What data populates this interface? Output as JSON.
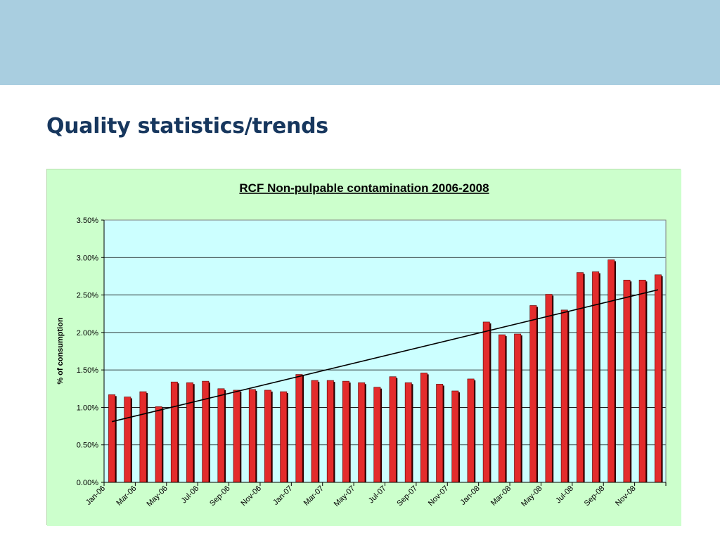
{
  "slide": {
    "title": "Quality statistics/trends",
    "header_color": "#A9CEE0",
    "title_color": "#17375E"
  },
  "colors": {
    "chart_background": "#CCFFCC",
    "plot_background": "#CCFFFF",
    "bar_fill": "#E32C2C",
    "bar_shadow": "#2B0000",
    "trendline": "#000000",
    "gridline": "#000000"
  },
  "chart_data": {
    "type": "bar",
    "title": "RCF Non-pulpable contamination 2006-2008",
    "xlabel": "",
    "ylabel": "% of consumption",
    "ylim": [
      0,
      0.035
    ],
    "yticks": [
      "0.00%",
      "0.50%",
      "1.00%",
      "1.50%",
      "2.00%",
      "2.50%",
      "3.00%",
      "3.50%"
    ],
    "grid": true,
    "legend": "none",
    "categories": [
      "Jan-06",
      "Feb-06",
      "Mar-06",
      "Apr-06",
      "May-06",
      "Jun-06",
      "Jul-06",
      "Aug-06",
      "Sep-06",
      "Oct-06",
      "Nov-06",
      "Dec-06",
      "Jan-07",
      "Feb-07",
      "Mar-07",
      "Apr-07",
      "May-07",
      "Jun-07",
      "Jul-07",
      "Aug-07",
      "Sep-07",
      "Oct-07",
      "Nov-07",
      "Dec-07",
      "Jan-08",
      "Feb-08",
      "Mar-08",
      "Apr-08",
      "May-08",
      "Jun-08",
      "Jul-08",
      "Aug-08",
      "Sep-08",
      "Oct-08",
      "Nov-08",
      "Dec-08"
    ],
    "xticklabels": [
      "Jan-06",
      "Mar-06",
      "May-06",
      "Jul-06",
      "Sep-06",
      "Nov-06",
      "Jan-07",
      "Mar-07",
      "May-07",
      "Jul-07",
      "Sep-07",
      "Nov-07",
      "Jan-08",
      "Mar-08",
      "May-08",
      "Jul-08",
      "Sep-08",
      "Nov-08"
    ],
    "series": [
      {
        "values": [
          0.0117,
          0.0114,
          0.0121,
          0.0101,
          0.0134,
          0.0133,
          0.0135,
          0.0125,
          0.0123,
          0.0124,
          0.0123,
          0.0121,
          0.0144,
          0.0136,
          0.0136,
          0.0135,
          0.0133,
          0.0127,
          0.0141,
          0.0133,
          0.0146,
          0.0131,
          0.0122,
          0.0138,
          0.0214,
          0.0197,
          0.0198,
          0.0236,
          0.0251,
          0.023,
          0.028,
          0.0281,
          0.0297,
          0.027,
          0.027,
          0.0277
        ]
      }
    ],
    "trendline": {
      "type": "linear",
      "start": 0.0081,
      "end": 0.0257
    }
  }
}
